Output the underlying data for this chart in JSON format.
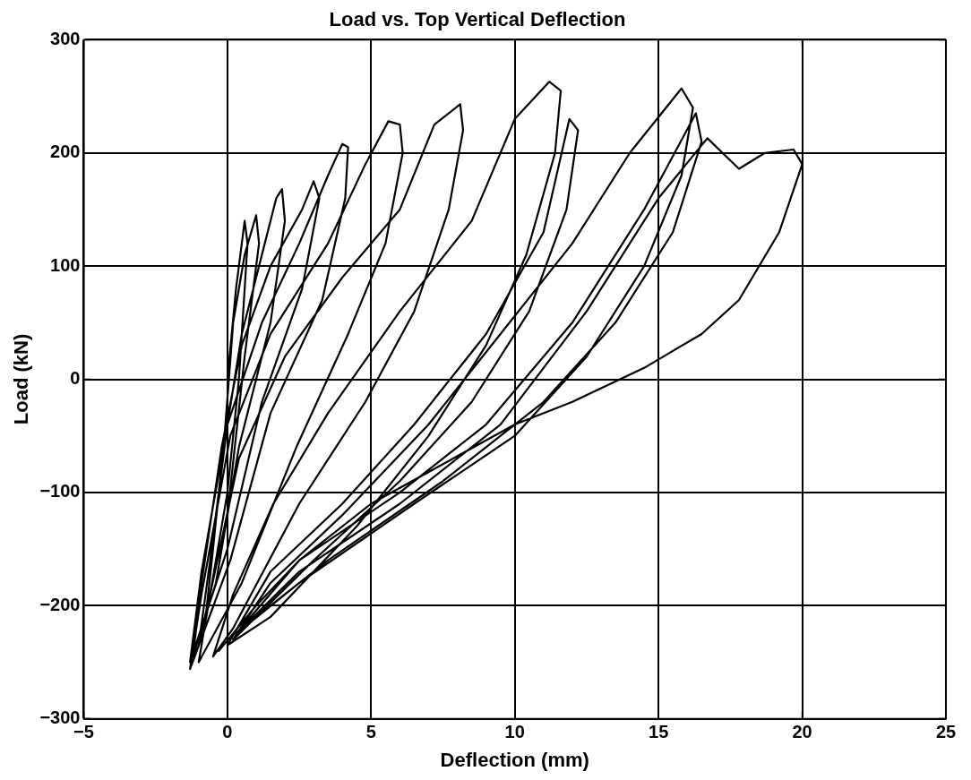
{
  "chart_data": {
    "type": "line",
    "title": "Load vs. Top Vertical Deflection",
    "xlabel": "Deflection (mm)",
    "ylabel": "Load (kN)",
    "xlim": [
      -5,
      25
    ],
    "xticks": [
      -5,
      0,
      5,
      10,
      15,
      20,
      25
    ],
    "ylim": [
      -300,
      300
    ],
    "yticks": [
      -300,
      -200,
      -100,
      0,
      100,
      200,
      300
    ],
    "grid": true,
    "marker": "none",
    "line_style": "solid",
    "series": [
      {
        "color": "#000000",
        "x": [
          0,
          0.3,
          0.6,
          0.7,
          0.4,
          0,
          -0.8,
          -0.5,
          -0.1,
          0.2,
          0.6,
          1.0,
          1.1,
          0.6,
          0,
          -1.0,
          -0.6,
          0,
          0.5,
          1.2,
          1.7,
          1.9,
          2.0,
          1.5,
          0.4,
          -0.4,
          -1.2,
          -0.9,
          -0.2,
          0.5,
          1.5,
          2.6,
          3.0,
          3.2,
          2.6,
          1.2,
          0,
          -1.3,
          -0.9,
          0,
          1.2,
          2.5,
          3.5,
          4.0,
          4.2,
          4.1,
          3.3,
          1.5,
          0.1,
          -1.3,
          -0.9,
          0.1,
          1.5,
          3.5,
          4.8,
          5.6,
          6.0,
          6.1,
          5.5,
          4.2,
          2.4,
          0.5,
          -1.0,
          -0.6,
          0.4,
          2,
          4,
          6,
          7.2,
          8.1,
          8.2,
          7.7,
          6.5,
          4.8,
          2.5,
          0.2,
          -0.5,
          0.2,
          1.6,
          3.5,
          6,
          8.5,
          10,
          11.2,
          11.6,
          11.4,
          10.4,
          9,
          7,
          4.5,
          1.5,
          0,
          1.5,
          4,
          6.5,
          9,
          11,
          11.9,
          12.2,
          11.8,
          10.5,
          8.5,
          6,
          3,
          0.2,
          1.5,
          4,
          7,
          9.5,
          12,
          14,
          15.8,
          16.2,
          15.8,
          14.5,
          12.5,
          10,
          6.5,
          2.5,
          0.3,
          2.5,
          6,
          9,
          12,
          14.5,
          16.3,
          16.5,
          15.5,
          13.5,
          11,
          7.5,
          3.5,
          0.5,
          2.5,
          6,
          9.5,
          12.5,
          15,
          16.7,
          17.8,
          18.7,
          19.7,
          20.0,
          19.2,
          17.8,
          16.5,
          14.5,
          12,
          10,
          7.5,
          5,
          2.5,
          1,
          -0.3
        ],
        "values": [
          0,
          80,
          140,
          120,
          0,
          -100,
          -220,
          -150,
          -50,
          50,
          110,
          145,
          120,
          20,
          -120,
          -235,
          -160,
          -40,
          40,
          110,
          160,
          168,
          140,
          50,
          -60,
          -180,
          -245,
          -180,
          -60,
          30,
          100,
          150,
          175,
          160,
          80,
          -20,
          -150,
          -250,
          -170,
          -40,
          50,
          120,
          180,
          208,
          205,
          160,
          70,
          -30,
          -160,
          -256,
          -190,
          -50,
          40,
          120,
          190,
          228,
          225,
          200,
          120,
          40,
          -60,
          -180,
          -250,
          -190,
          -70,
          20,
          90,
          150,
          225,
          243,
          220,
          150,
          60,
          -20,
          -110,
          -220,
          -245,
          -190,
          -110,
          -30,
          60,
          140,
          230,
          263,
          255,
          200,
          110,
          30,
          -50,
          -130,
          -210,
          -235,
          -170,
          -110,
          -40,
          40,
          130,
          230,
          220,
          150,
          60,
          -20,
          -90,
          -160,
          -230,
          -180,
          -120,
          -40,
          40,
          120,
          200,
          257,
          240,
          180,
          100,
          20,
          -50,
          -110,
          -180,
          -225,
          -160,
          -100,
          -40,
          50,
          150,
          235,
          210,
          130,
          50,
          -20,
          -90,
          -160,
          -220,
          -170,
          -110,
          -40,
          60,
          160,
          213,
          186,
          200,
          203,
          190,
          130,
          70,
          40,
          10,
          -20,
          -40,
          -75,
          -110,
          -160,
          -200,
          -240
        ]
      }
    ]
  }
}
